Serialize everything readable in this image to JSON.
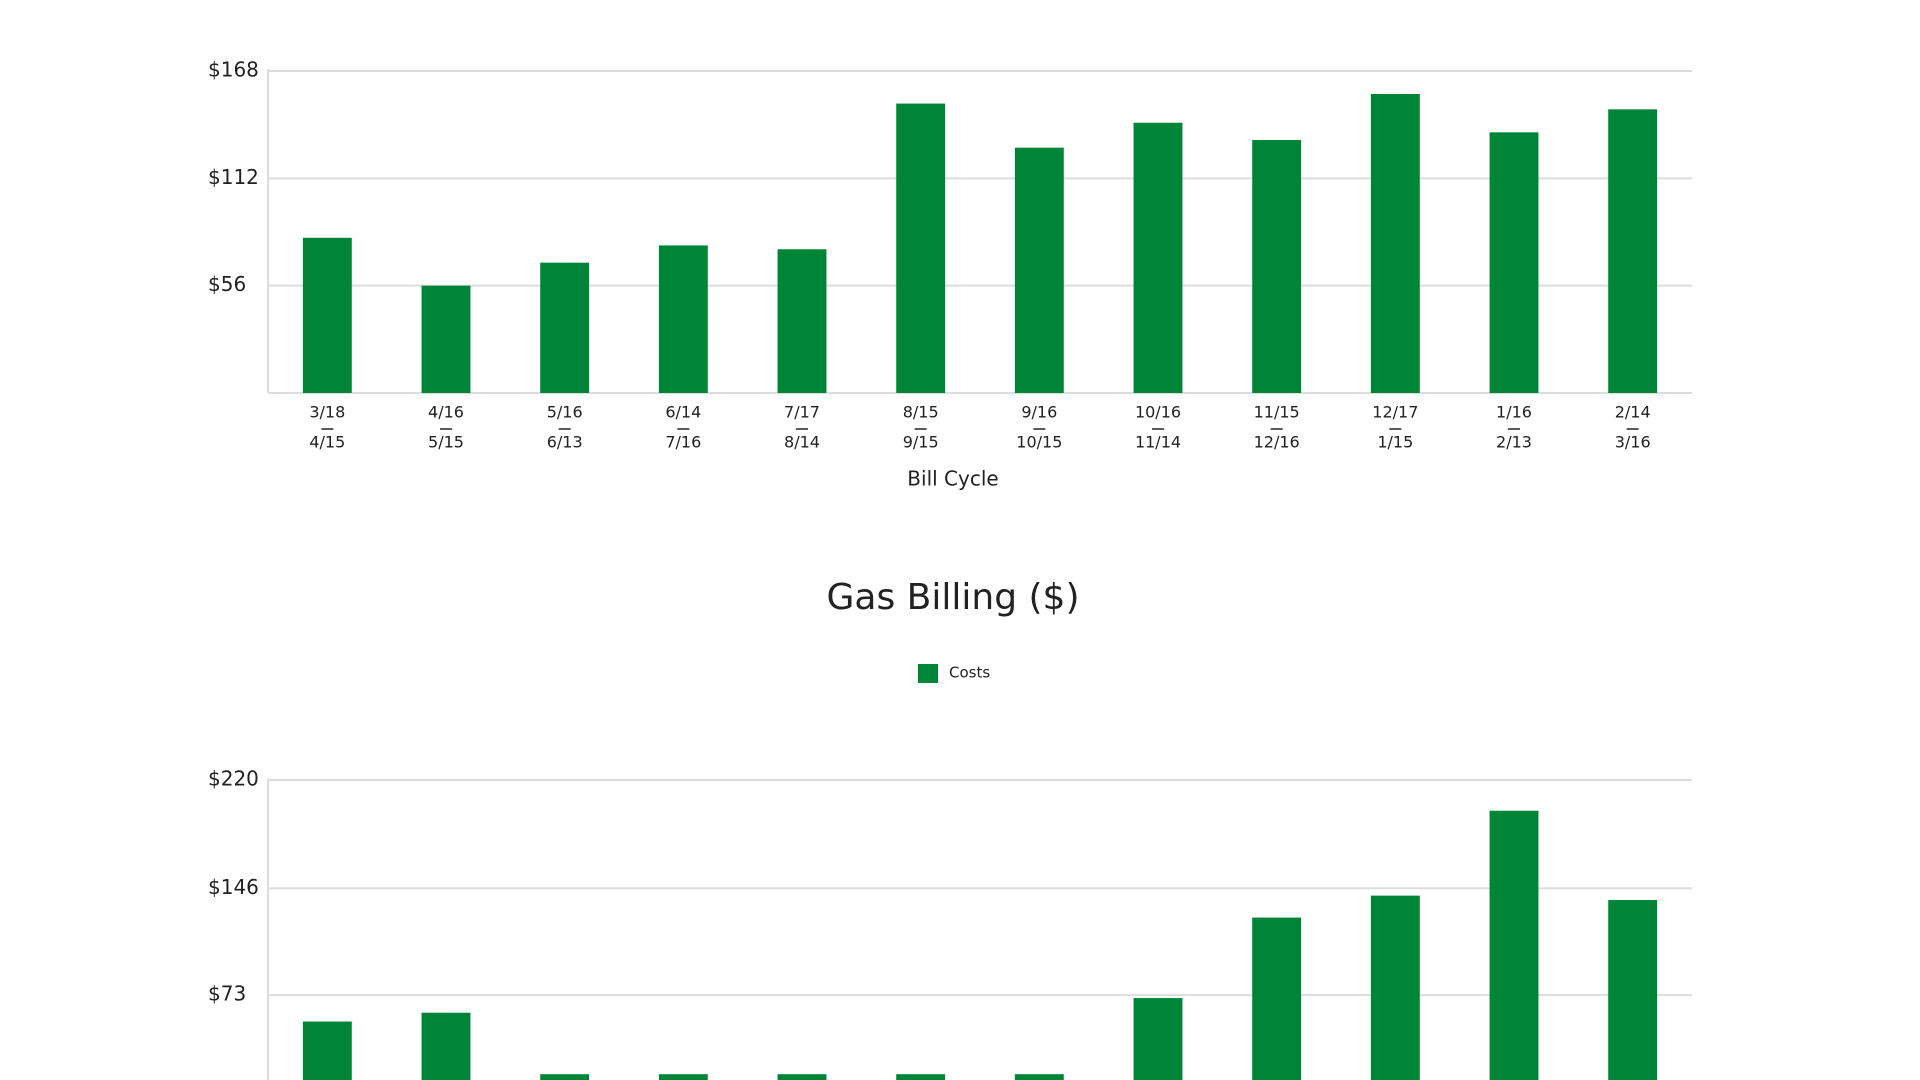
{
  "chart_data": [
    {
      "type": "bar",
      "categories": [
        [
          "3/18",
          "4/15"
        ],
        [
          "4/16",
          "5/15"
        ],
        [
          "5/16",
          "6/13"
        ],
        [
          "6/14",
          "7/16"
        ],
        [
          "7/17",
          "8/14"
        ],
        [
          "8/15",
          "9/15"
        ],
        [
          "9/16",
          "10/15"
        ],
        [
          "10/16",
          "11/14"
        ],
        [
          "11/15",
          "12/16"
        ],
        [
          "12/17",
          "1/15"
        ],
        [
          "1/16",
          "2/13"
        ],
        [
          "2/14",
          "3/16"
        ]
      ],
      "values": [
        81,
        56,
        68,
        77,
        75,
        151,
        128,
        141,
        132,
        156,
        136,
        148
      ],
      "color": "#008538",
      "x_label": "Bill Cycle",
      "ylim": [
        0,
        168
      ],
      "yticks": [
        {
          "value": 56,
          "label": "$56"
        },
        {
          "value": 112,
          "label": "$112"
        },
        {
          "value": 168,
          "label": "$168"
        }
      ],
      "grid": true
    },
    {
      "type": "bar",
      "title": "Gas Billing ($)",
      "categories": [
        null,
        null,
        null,
        null,
        null,
        null,
        null,
        null,
        null,
        null,
        null,
        null
      ],
      "series": [
        {
          "name": "Costs",
          "color": "#008538",
          "values": [
            55,
            61,
            19,
            19,
            19,
            19,
            19,
            71,
            126,
            141,
            199,
            138
          ]
        }
      ],
      "ylim": [
        0,
        220
      ],
      "yticks": [
        {
          "value": 73,
          "label": "$73"
        },
        {
          "value": 146,
          "label": "$146"
        },
        {
          "value": 220,
          "label": "$220"
        }
      ],
      "grid": true
    }
  ]
}
